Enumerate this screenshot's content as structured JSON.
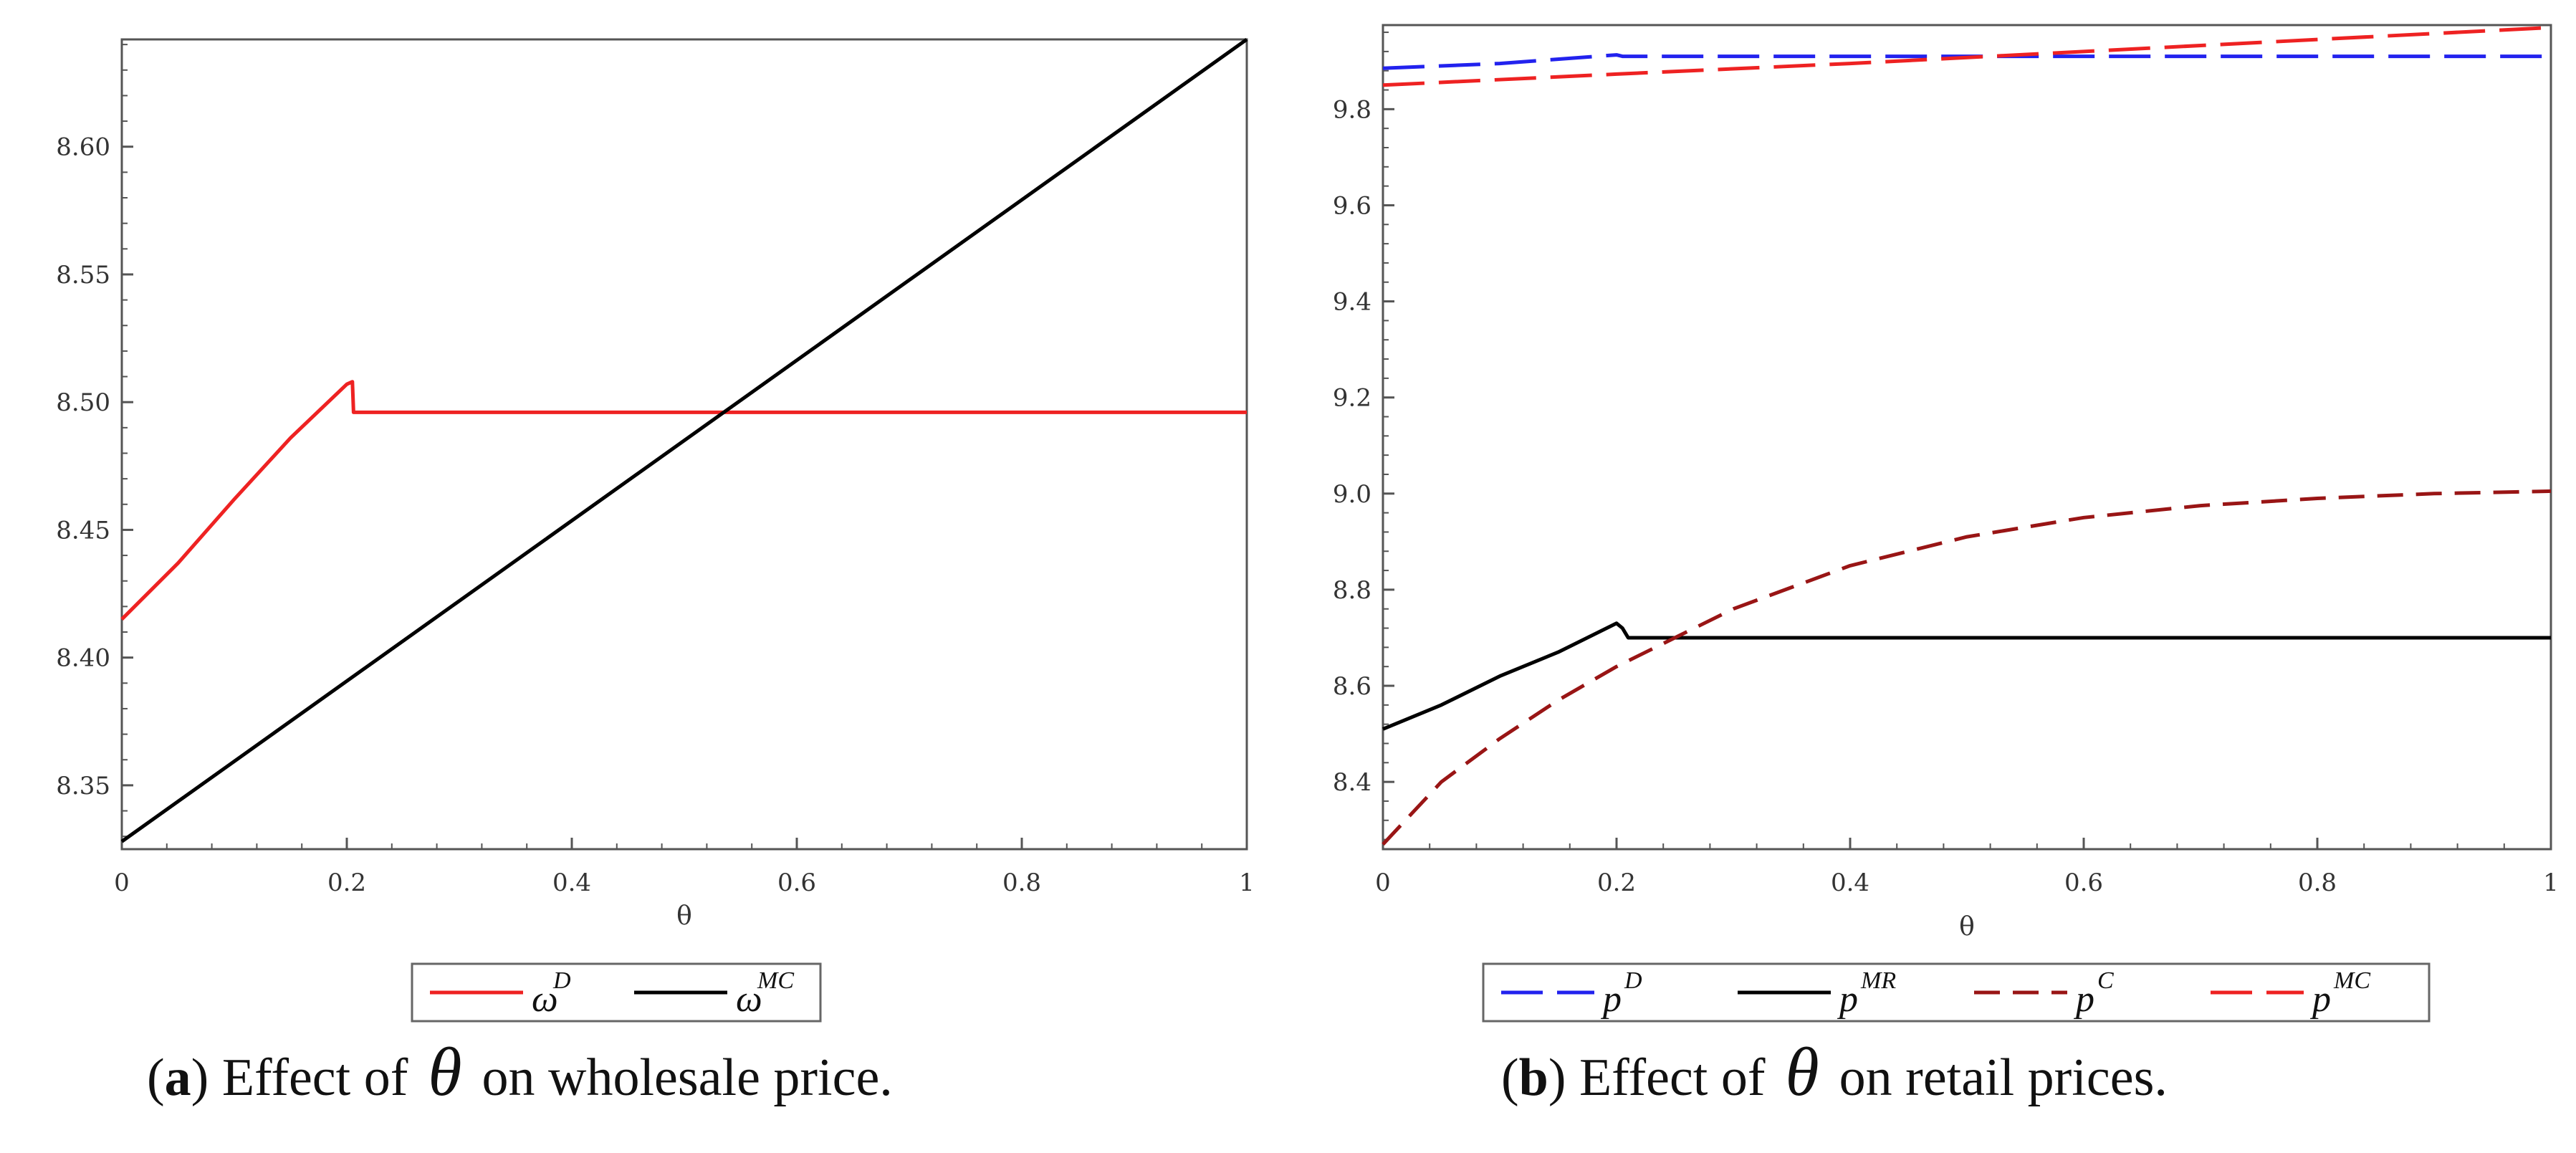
{
  "chart_data": [
    {
      "type": "line",
      "id": "a",
      "xlabel": "θ",
      "ylabel": "",
      "xlim": [
        0,
        1
      ],
      "ylim": [
        8.325,
        8.642
      ],
      "xticks": [
        "0",
        "0.2",
        "0.4",
        "0.6",
        "0.8",
        "1"
      ],
      "yticks": [
        "8.35",
        "8.40",
        "8.45",
        "8.50",
        "8.55",
        "8.60"
      ],
      "series": [
        {
          "name": "ω^D",
          "base": "ω",
          "sup": "D",
          "color": "#ee2222",
          "dash": "solid",
          "points": [
            [
              0,
              8.415
            ],
            [
              0.05,
              8.437
            ],
            [
              0.1,
              8.462
            ],
            [
              0.15,
              8.486
            ],
            [
              0.2,
              8.507
            ],
            [
              0.205,
              8.508
            ],
            [
              0.206,
              8.496
            ],
            [
              1,
              8.496
            ]
          ]
        },
        {
          "name": "ω^MC",
          "base": "ω",
          "sup": "MC",
          "color": "#000000",
          "dash": "solid",
          "points": [
            [
              0,
              8.328
            ],
            [
              1,
              8.642
            ]
          ]
        }
      ],
      "caption": {
        "label": "a",
        "before": "Effect of",
        "symbol": "θ",
        "after": "on wholesale price."
      }
    },
    {
      "type": "line",
      "id": "b",
      "xlabel": "θ",
      "ylabel": "",
      "xlim": [
        0,
        1
      ],
      "ylim": [
        8.26,
        9.975
      ],
      "xticks": [
        "0",
        "0.2",
        "0.4",
        "0.6",
        "0.8",
        "1"
      ],
      "yticks": [
        "8.4",
        "8.6",
        "8.8",
        "9.0",
        "9.2",
        "9.4",
        "9.6",
        "9.8"
      ],
      "series": [
        {
          "name": "p^D",
          "base": "p",
          "sup": "D",
          "color": "#2222ee",
          "dash": "long-dash",
          "points": [
            [
              0,
              9.885
            ],
            [
              0.1,
              9.895
            ],
            [
              0.2,
              9.913
            ],
            [
              0.205,
              9.91
            ],
            [
              1,
              9.91
            ]
          ]
        },
        {
          "name": "p^MR",
          "base": "p",
          "sup": "MR",
          "color": "#000000",
          "dash": "solid",
          "points": [
            [
              0,
              8.51
            ],
            [
              0.05,
              8.56
            ],
            [
              0.1,
              8.62
            ],
            [
              0.15,
              8.67
            ],
            [
              0.2,
              8.73
            ],
            [
              0.205,
              8.72
            ],
            [
              0.21,
              8.7
            ],
            [
              1,
              8.7
            ]
          ]
        },
        {
          "name": "p^C",
          "base": "p",
          "sup": "C",
          "color": "#991515",
          "dash": "dash",
          "points": [
            [
              0,
              8.27
            ],
            [
              0.05,
              8.4
            ],
            [
              0.1,
              8.49
            ],
            [
              0.15,
              8.57
            ],
            [
              0.2,
              8.64
            ],
            [
              0.3,
              8.76
            ],
            [
              0.4,
              8.85
            ],
            [
              0.5,
              8.91
            ],
            [
              0.6,
              8.95
            ],
            [
              0.7,
              8.975
            ],
            [
              0.8,
              8.99
            ],
            [
              0.9,
              9.0
            ],
            [
              1,
              9.005
            ]
          ]
        },
        {
          "name": "p^MC",
          "base": "p",
          "sup": "MC",
          "color": "#ee2222",
          "dash": "long-dash",
          "points": [
            [
              0,
              9.85
            ],
            [
              0.2,
              9.873
            ],
            [
              0.4,
              9.895
            ],
            [
              0.6,
              9.92
            ],
            [
              0.8,
              9.945
            ],
            [
              1,
              9.97
            ]
          ]
        }
      ],
      "caption": {
        "label": "b",
        "before": "Effect of",
        "symbol": "θ",
        "after": "on retail prices."
      }
    }
  ]
}
